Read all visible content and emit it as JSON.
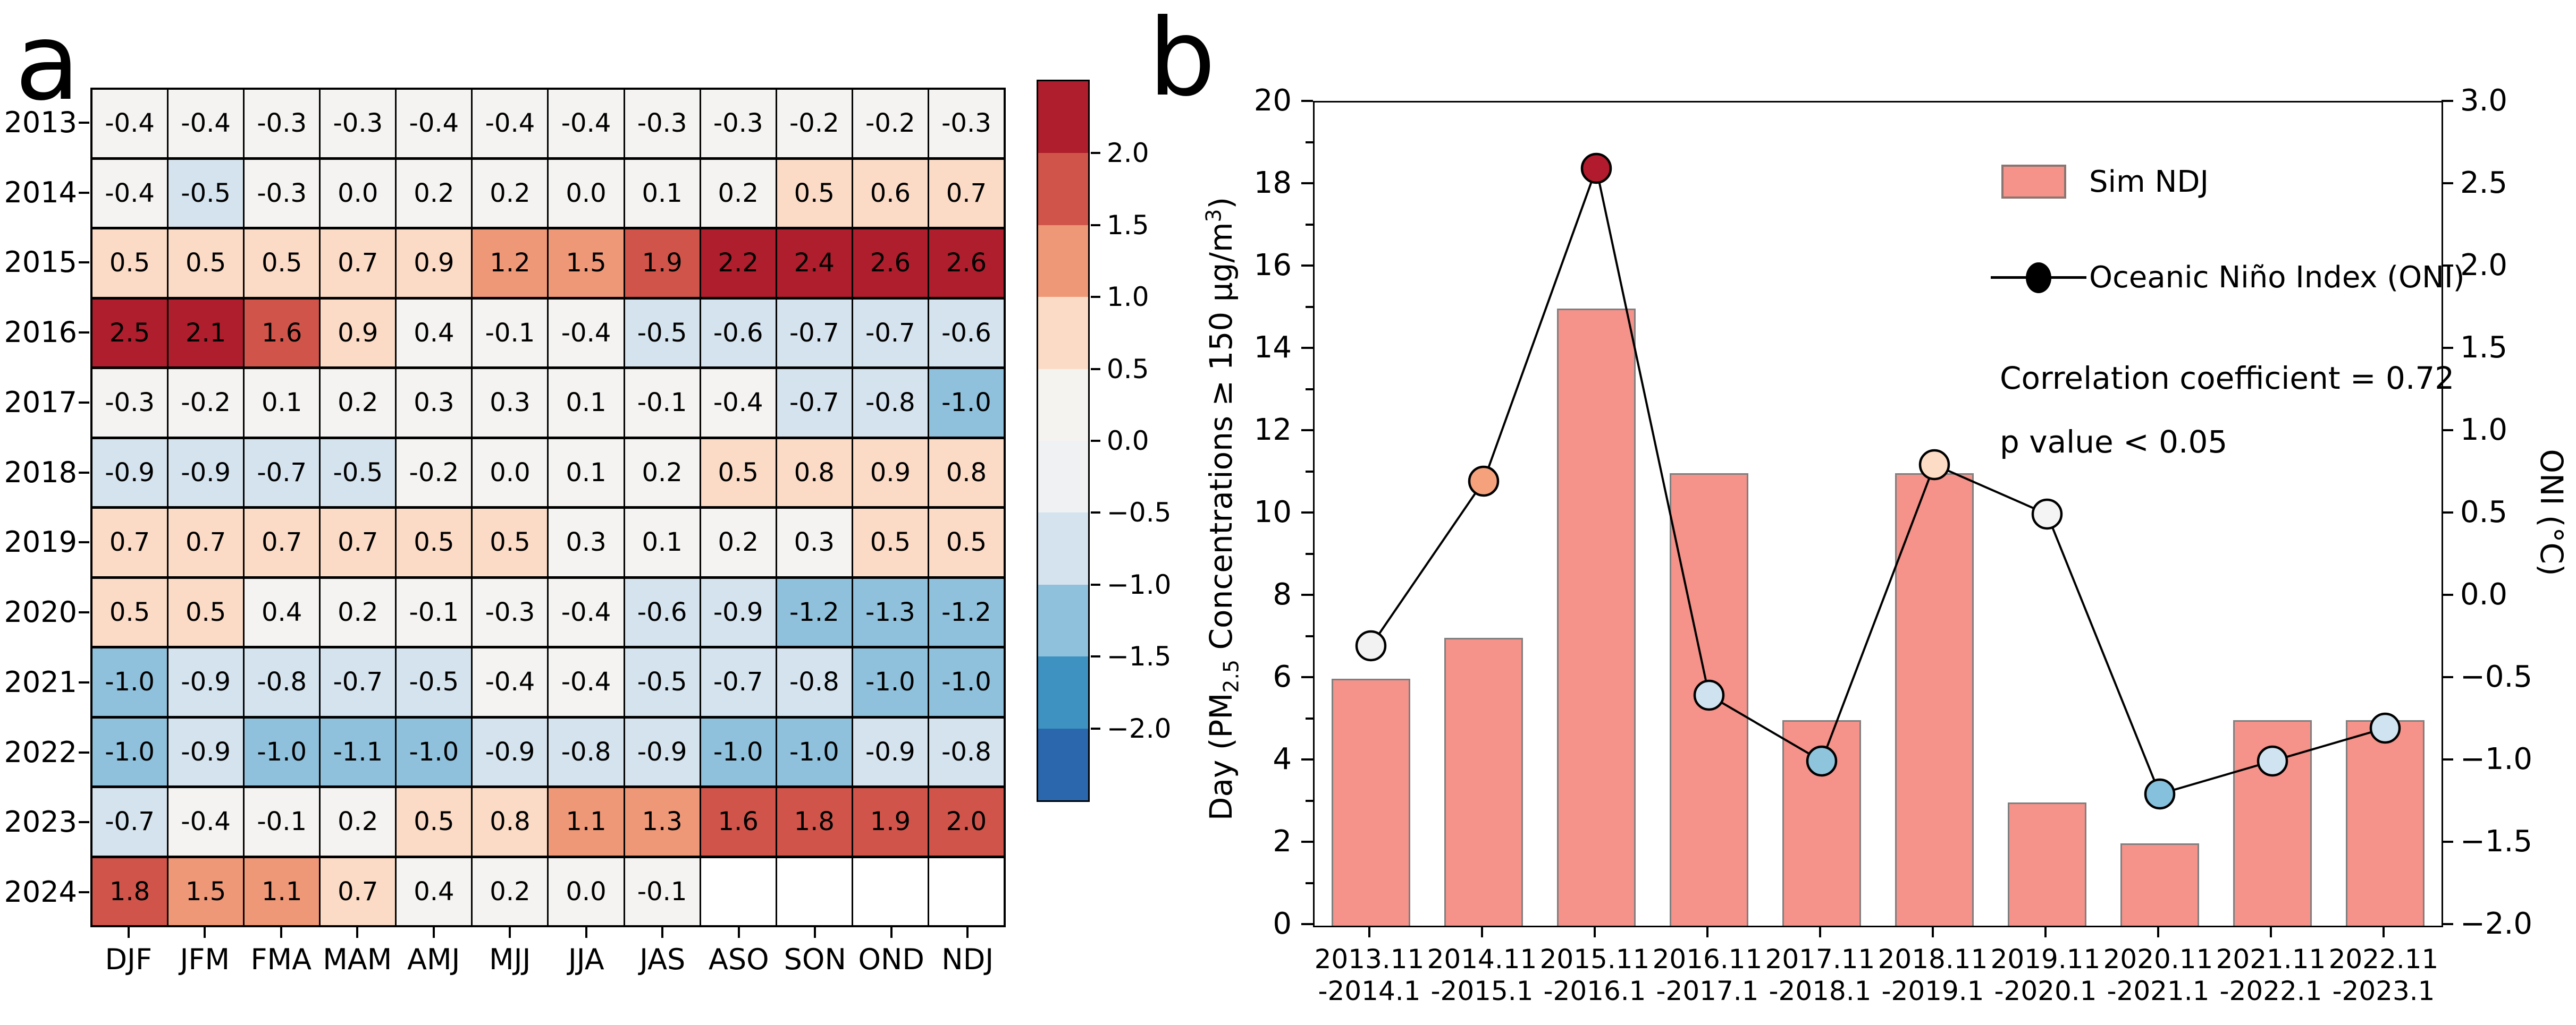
{
  "panel_a": {
    "label": "a"
  },
  "panel_b": {
    "label": "b"
  },
  "chart_data": [
    {
      "type": "heatmap",
      "title": "Oceanic Nino Index (ONI) by year and overlapping 3-month season",
      "years": [
        "2013",
        "2014",
        "2015",
        "2016",
        "2017",
        "2018",
        "2019",
        "2020",
        "2021",
        "2022",
        "2023",
        "2024"
      ],
      "columns": [
        "DJF",
        "JFM",
        "FMA",
        "MAM",
        "AMJ",
        "MJJ",
        "JJA",
        "JAS",
        "ASO",
        "SON",
        "OND",
        "NDJ"
      ],
      "values": [
        [
          -0.4,
          -0.4,
          -0.3,
          -0.3,
          -0.4,
          -0.4,
          -0.4,
          -0.3,
          -0.3,
          -0.2,
          -0.2,
          -0.3
        ],
        [
          -0.4,
          -0.5,
          -0.3,
          0.0,
          0.2,
          0.2,
          0.0,
          0.1,
          0.2,
          0.5,
          0.6,
          0.7
        ],
        [
          0.5,
          0.5,
          0.5,
          0.7,
          0.9,
          1.2,
          1.5,
          1.9,
          2.2,
          2.4,
          2.6,
          2.6
        ],
        [
          2.5,
          2.1,
          1.6,
          0.9,
          0.4,
          -0.1,
          -0.4,
          -0.5,
          -0.6,
          -0.7,
          -0.7,
          -0.6
        ],
        [
          -0.3,
          -0.2,
          0.1,
          0.2,
          0.3,
          0.3,
          0.1,
          -0.1,
          -0.4,
          -0.7,
          -0.8,
          -1.0
        ],
        [
          -0.9,
          -0.9,
          -0.7,
          -0.5,
          -0.2,
          0.0,
          0.1,
          0.2,
          0.5,
          0.8,
          0.9,
          0.8
        ],
        [
          0.7,
          0.7,
          0.7,
          0.7,
          0.5,
          0.5,
          0.3,
          0.1,
          0.2,
          0.3,
          0.5,
          0.5
        ],
        [
          0.5,
          0.5,
          0.4,
          0.2,
          -0.1,
          -0.3,
          -0.4,
          -0.6,
          -0.9,
          -1.2,
          -1.3,
          -1.2
        ],
        [
          -1.0,
          -0.9,
          -0.8,
          -0.7,
          -0.5,
          -0.4,
          -0.4,
          -0.5,
          -0.7,
          -0.8,
          -1.0,
          -1.0
        ],
        [
          -1.0,
          -0.9,
          -1.0,
          -1.1,
          -1.0,
          -0.9,
          -0.8,
          -0.9,
          -1.0,
          -1.0,
          -0.9,
          -0.8
        ],
        [
          -0.7,
          -0.4,
          -0.1,
          0.2,
          0.5,
          0.8,
          1.1,
          1.3,
          1.6,
          1.8,
          1.9,
          2.0
        ],
        [
          1.8,
          1.5,
          1.1,
          0.7,
          0.4,
          0.2,
          0.0,
          -0.1,
          null,
          null,
          null,
          null
        ]
      ],
      "palette": {
        "r5": "#ae1e2c",
        "r4": "#d0544a",
        "r3": "#ef9878",
        "r2": "#fbdbc6",
        "w": "#f4f3f1",
        "b2": "#d5e3ee",
        "b3": "#8fc1dc",
        "b4": "#3e92c2",
        "b5": "#2a67ad"
      },
      "colorbar": {
        "tick_labels": [
          "2.0",
          "1.5",
          "1.0",
          "0.5",
          "0.0",
          "−0.5",
          "−1.0",
          "−1.5",
          "−2.0"
        ],
        "segment_colors": [
          "#ae1e2c",
          "#d0544a",
          "#ef9878",
          "#fbdbc6",
          "#f5f3f0",
          "#eff1f3",
          "#d5e3ee",
          "#8fc1dc",
          "#3e92c2",
          "#2a67ad"
        ]
      }
    },
    {
      "type": "bar",
      "categories": [
        {
          "top": "2013.11",
          "bottom": "-2014.1"
        },
        {
          "top": "2014.11",
          "bottom": "-2015.1"
        },
        {
          "top": "2015.11",
          "bottom": "-2016.1"
        },
        {
          "top": "2016.11",
          "bottom": "-2017.1"
        },
        {
          "top": "2017.11",
          "bottom": "-2018.1"
        },
        {
          "top": "2018.11",
          "bottom": "-2019.1"
        },
        {
          "top": "2019.11",
          "bottom": "-2020.1"
        },
        {
          "top": "2020.11",
          "bottom": "-2021.1"
        },
        {
          "top": "2021.11",
          "bottom": "-2022.1"
        },
        {
          "top": "2022.11",
          "bottom": "-2023.1"
        }
      ],
      "bars": {
        "name": "Sim NDJ",
        "values": [
          6,
          7,
          15,
          11,
          5,
          11,
          3,
          2,
          5,
          5
        ],
        "color": "#f59289",
        "edge_color": "#7f7f7f"
      },
      "line": {
        "name": "Oceanic Niño Index (ONI)",
        "values": [
          -0.3,
          0.7,
          2.6,
          -0.6,
          -1.0,
          0.8,
          0.5,
          -1.2,
          -1.0,
          -0.8
        ],
        "color": "#000000",
        "marker_colors": [
          "#f2f2f2",
          "#f5a27c",
          "#b11b2d",
          "#cfe2ef",
          "#8fc4dd",
          "#fcdcc5",
          "#f4f4f4",
          "#85c0dc",
          "#cfe3f0",
          "#cfe3f0"
        ]
      },
      "ylabel_left_parts": [
        "Day (PM",
        "2.5",
        " Concentrations ≥ 150 μg/m",
        "3",
        ")"
      ],
      "ylabel_right": "ONI (°C)",
      "ylim_left": [
        0,
        20
      ],
      "ylim_right": [
        -2.0,
        3.0
      ],
      "yticks_left": [
        "0",
        "2",
        "4",
        "6",
        "8",
        "10",
        "12",
        "14",
        "16",
        "18",
        "20"
      ],
      "yticks_right": [
        "3.0",
        "2.5",
        "2.0",
        "1.5",
        "1.0",
        "0.5",
        "0.0",
        "−0.5",
        "−1.0",
        "−1.5",
        "−2.0"
      ],
      "annotations": [
        "Correlation coefficient = 0.72",
        "p value < 0.05"
      ],
      "legend_position": "upper right",
      "grid": false
    }
  ]
}
